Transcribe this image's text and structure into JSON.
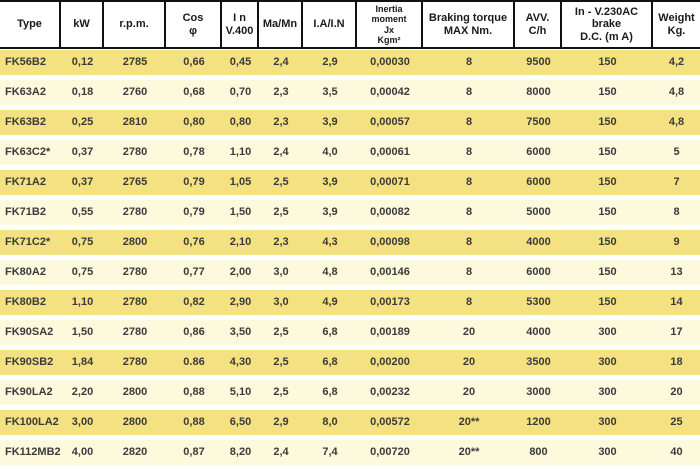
{
  "table": {
    "header": [
      "Type",
      "kW",
      "r.p.m.",
      "Cos\nφ",
      "I n\nV.400",
      "Ma/Mn",
      "I.A/I.N",
      "Inertia\nmoment\nJx\nKgm²",
      "Braking torque\nMAX Nm.",
      "AVV.\nC/h",
      "In - V.230AC\nbrake\nD.C. (m A)",
      "Weight\nKg."
    ],
    "rows": [
      [
        "FK56B2",
        "0,12",
        "2785",
        "0,66",
        "0,45",
        "2,4",
        "2,9",
        "0,00030",
        "8",
        "9500",
        "150",
        "4,2"
      ],
      [
        "FK63A2",
        "0,18",
        "2760",
        "0,68",
        "0,70",
        "2,3",
        "3,5",
        "0,00042",
        "8",
        "8000",
        "150",
        "4,8"
      ],
      [
        "FK63B2",
        "0,25",
        "2810",
        "0,80",
        "0,80",
        "2,3",
        "3,9",
        "0,00057",
        "8",
        "7500",
        "150",
        "4,8"
      ],
      [
        "FK63C2*",
        "0,37",
        "2780",
        "0,78",
        "1,10",
        "2,4",
        "4,0",
        "0,00061",
        "8",
        "6000",
        "150",
        "5"
      ],
      [
        "FK71A2",
        "0,37",
        "2765",
        "0,79",
        "1,05",
        "2,5",
        "3,9",
        "0,00071",
        "8",
        "6000",
        "150",
        "7"
      ],
      [
        "FK71B2",
        "0,55",
        "2780",
        "0,79",
        "1,50",
        "2,5",
        "3,9",
        "0,00082",
        "8",
        "5000",
        "150",
        "8"
      ],
      [
        "FK71C2*",
        "0,75",
        "2800",
        "0,76",
        "2,10",
        "2,3",
        "4,3",
        "0,00098",
        "8",
        "4000",
        "150",
        "9"
      ],
      [
        "FK80A2",
        "0,75",
        "2780",
        "0,77",
        "2,00",
        "3,0",
        "4,8",
        "0,00146",
        "8",
        "6000",
        "150",
        "13"
      ],
      [
        "FK80B2",
        "1,10",
        "2780",
        "0,82",
        "2,90",
        "3,0",
        "4,9",
        "0,00173",
        "8",
        "5300",
        "150",
        "14"
      ],
      [
        "FK90SA2",
        "1,50",
        "2780",
        "0,86",
        "3,50",
        "2,5",
        "6,8",
        "0,00189",
        "20",
        "4000",
        "300",
        "17"
      ],
      [
        "FK90SB2",
        "1,84",
        "2780",
        "0.86",
        "4,30",
        "2,5",
        "6,8",
        "0,00200",
        "20",
        "3500",
        "300",
        "18"
      ],
      [
        "FK90LA2",
        "2,20",
        "2800",
        "0,88",
        "5,10",
        "2,5",
        "6,8",
        "0,00232",
        "20",
        "3000",
        "300",
        "20"
      ],
      [
        "FK100LA2",
        "3,00",
        "2800",
        "0,88",
        "6,50",
        "2,9",
        "8,0",
        "0,00572",
        "20**",
        "1200",
        "300",
        "25"
      ],
      [
        "FK112MB2",
        "4,00",
        "2820",
        "0,87",
        "8,20",
        "2,4",
        "7,4",
        "0,00720",
        "20**",
        "800",
        "300",
        "40"
      ]
    ],
    "colors": {
      "row_dark": "#f4e182",
      "row_light": "#fcf9dc",
      "header_bg": "#ffffff",
      "header_text": "#1a1a1a",
      "text": "#3b3b3b",
      "border": "#111111"
    }
  }
}
